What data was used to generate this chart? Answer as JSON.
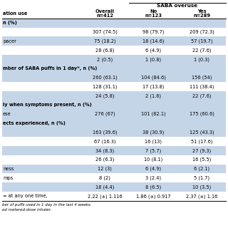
{
  "title_main": "SABA overuse",
  "header_row1_label": "ation use",
  "col_headers": [
    [
      "Overall",
      "n=412"
    ],
    [
      "No",
      "n=123"
    ],
    [
      "Yes",
      "n=289"
    ]
  ],
  "rows": [
    {
      "label": "n (%)",
      "values": [
        "",
        "",
        ""
      ],
      "is_section": true,
      "shade": true
    },
    {
      "label": "",
      "values": [
        "307 (74.5)",
        "98 (79.7)",
        "209 (72.3)"
      ],
      "is_section": false,
      "shade": false
    },
    {
      "label": "pacer",
      "values": [
        "75 (18.2)",
        "18 (14.6)",
        "57 (19.7)"
      ],
      "is_section": false,
      "shade": true
    },
    {
      "label": "",
      "values": [
        "28 (6.8)",
        "6 (4.9)",
        "22 (7.6)"
      ],
      "is_section": false,
      "shade": false
    },
    {
      "label": "",
      "values": [
        "2 (0.5)",
        "1 (0.8)",
        "1 (0.3)"
      ],
      "is_section": false,
      "shade": true
    },
    {
      "label": "mber of SABA puffs in 1 day*, n (%)",
      "values": [
        "",
        "",
        ""
      ],
      "is_section": true,
      "shade": false
    },
    {
      "label": "",
      "values": [
        "260 (63.1)",
        "104 (84.6)",
        "156 (54)"
      ],
      "is_section": false,
      "shade": true
    },
    {
      "label": "",
      "values": [
        "128 (31.1)",
        "17 (13.8)",
        "111 (38.4)"
      ],
      "is_section": false,
      "shade": false
    },
    {
      "label": "",
      "values": [
        "24 (5.8)",
        "2 (1.6)",
        "22 (7.6)"
      ],
      "is_section": false,
      "shade": true
    },
    {
      "label": "ly when symptoms present, n (%)",
      "values": [
        "",
        "",
        ""
      ],
      "is_section": true,
      "shade": false
    },
    {
      "label": "ese",
      "values": [
        "276 (67)",
        "101 (82.1)",
        "175 (60.6)"
      ],
      "is_section": false,
      "shade": true
    },
    {
      "label": "ects experienced, n (%)",
      "values": [
        "",
        "",
        ""
      ],
      "is_section": true,
      "shade": false
    },
    {
      "label": "",
      "values": [
        "163 (39.6)",
        "38 (30.9)",
        "125 (43.3)"
      ],
      "is_section": false,
      "shade": true
    },
    {
      "label": "",
      "values": [
        "67 (16.3)",
        "16 (13)",
        "51 (17.6)"
      ],
      "is_section": false,
      "shade": false
    },
    {
      "label": "",
      "values": [
        "34 (8.3)",
        "7 (5.7)",
        "27 (9.3)"
      ],
      "is_section": false,
      "shade": true
    },
    {
      "label": "",
      "values": [
        "26 (6.3)",
        "10 (8.1)",
        "16 (5.5)"
      ],
      "is_section": false,
      "shade": false
    },
    {
      "label": "ness",
      "values": [
        "12 (3)",
        "6 (4.9)",
        "6 (2.1)"
      ],
      "is_section": false,
      "shade": true
    },
    {
      "label": "mps",
      "values": [
        "8 (2)",
        "3 (2.4)",
        "5 (1.7)"
      ],
      "is_section": false,
      "shade": false
    },
    {
      "label": "",
      "values": [
        "18 (4.4)",
        "8 (6.5)",
        "10 (3.5)"
      ],
      "is_section": false,
      "shade": true
    },
    {
      "label": "= at any one time,",
      "values": [
        "2.22 (±) 1.116",
        "1.86 (±) 0.917",
        "2.37 (±) 1.16"
      ],
      "is_section": false,
      "shade": false
    }
  ],
  "footnotes": [
    "ber of puffs used in 1 day in the last 4 weeks.",
    "ed metered-dose inhaler."
  ],
  "shade_color": "#c5d5e8",
  "bg_color": "#ffffff",
  "font_size": 4.8,
  "header_font_size": 5.2
}
